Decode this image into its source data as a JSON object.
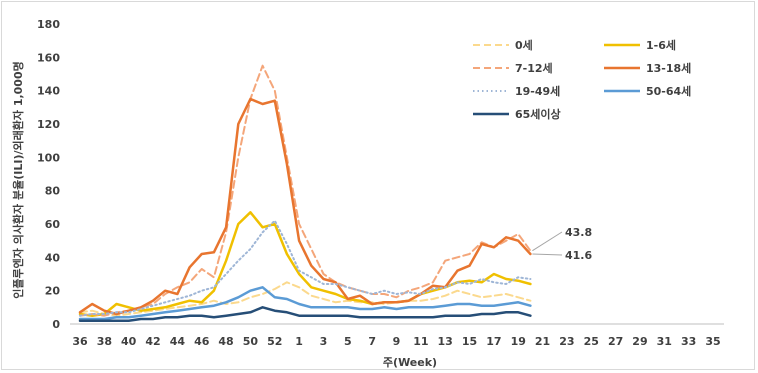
{
  "chart_data": {
    "type": "line",
    "xlabel": "주(Week)",
    "ylabel": "인플루엔자 의사환자 분율(ILI)/외래환자 1,000명",
    "ylim": [
      0,
      180
    ],
    "yticks": [
      0,
      20,
      40,
      60,
      80,
      100,
      120,
      140,
      160,
      180
    ],
    "xtick_labels": [
      "36",
      "38",
      "40",
      "42",
      "44",
      "46",
      "48",
      "50",
      "52",
      "1",
      "3",
      "5",
      "7",
      "9",
      "11",
      "13",
      "15",
      "17",
      "19",
      "21",
      "23",
      "25",
      "27",
      "29",
      "31",
      "33",
      "35"
    ],
    "grid": "none",
    "legend_position": "top-right",
    "colors": {
      "0세": "#fbd98d",
      "1-6세": "#f0c000",
      "7-12세": "#f4a67a",
      "13-18세": "#e8752f",
      "19-49세": "#9fb6d6",
      "50-64세": "#5b9bd5",
      "65세이상": "#264e77"
    },
    "series": [
      {
        "name": "0세",
        "style": "dashed",
        "values": [
          7,
          8,
          6,
          5,
          6,
          7,
          8,
          9,
          10,
          11,
          12,
          14,
          12,
          13,
          16,
          18,
          21,
          25,
          22,
          17,
          15,
          13,
          14,
          13,
          13,
          12,
          13,
          14,
          14,
          15,
          17,
          20,
          18,
          16,
          17,
          18,
          16,
          14
        ]
      },
      {
        "name": "1-6세",
        "style": "solid",
        "values": [
          6,
          5,
          6,
          12,
          10,
          8,
          9,
          10,
          12,
          14,
          13,
          20,
          38,
          60,
          67,
          58,
          60,
          42,
          30,
          22,
          20,
          18,
          15,
          14,
          12,
          13,
          13,
          14,
          18,
          20,
          22,
          25,
          26,
          25,
          30,
          27,
          26,
          24
        ]
      },
      {
        "name": "7-12세",
        "style": "dashed",
        "values": [
          5,
          6,
          5,
          7,
          8,
          10,
          12,
          18,
          22,
          25,
          33,
          28,
          55,
          100,
          135,
          155,
          140,
          100,
          60,
          45,
          30,
          25,
          22,
          20,
          18,
          18,
          16,
          20,
          22,
          25,
          38,
          40,
          42,
          49,
          46,
          50,
          54,
          44
        ]
      },
      {
        "name": "13-18세",
        "style": "solid",
        "values": [
          7,
          12,
          8,
          6,
          8,
          10,
          14,
          20,
          18,
          34,
          42,
          43,
          58,
          120,
          135,
          132,
          134,
          96,
          50,
          35,
          27,
          25,
          15,
          17,
          12,
          13,
          13,
          14,
          18,
          23,
          22,
          32,
          35,
          48,
          46,
          52,
          50,
          42
        ]
      },
      {
        "name": "19-49세",
        "style": "dotted",
        "values": [
          5,
          6,
          6,
          7,
          7,
          9,
          11,
          13,
          15,
          17,
          20,
          22,
          30,
          38,
          45,
          55,
          62,
          48,
          32,
          28,
          24,
          24,
          22,
          20,
          18,
          20,
          18,
          19,
          18,
          21,
          22,
          25,
          24,
          27,
          25,
          24,
          28,
          27
        ]
      },
      {
        "name": "50-64세",
        "style": "solid",
        "values": [
          3,
          3,
          3,
          4,
          4,
          5,
          6,
          7,
          8,
          9,
          10,
          11,
          13,
          16,
          20,
          22,
          16,
          15,
          12,
          10,
          10,
          10,
          10,
          9,
          9,
          10,
          9,
          10,
          10,
          10,
          11,
          12,
          12,
          11,
          11,
          12,
          13,
          11
        ]
      },
      {
        "name": "65세이상",
        "style": "solid",
        "values": [
          2,
          2,
          2,
          2,
          2,
          3,
          3,
          4,
          4,
          5,
          5,
          4,
          5,
          6,
          7,
          10,
          8,
          7,
          5,
          5,
          5,
          5,
          5,
          4,
          4,
          4,
          4,
          4,
          4,
          4,
          5,
          5,
          5,
          6,
          6,
          7,
          7,
          5
        ]
      }
    ],
    "annotations": [
      {
        "text": "43.8",
        "series": "7-12세"
      },
      {
        "text": "41.6",
        "series": "13-18세"
      }
    ]
  }
}
